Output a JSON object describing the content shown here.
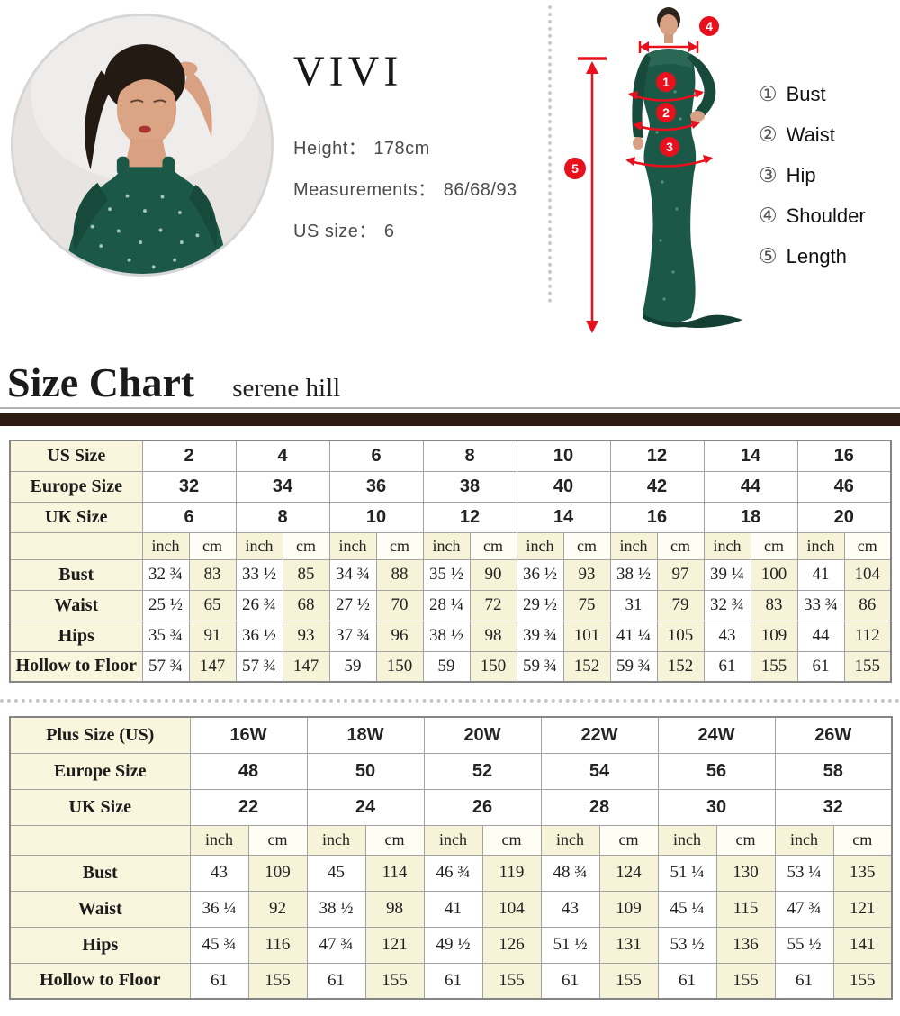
{
  "colors": {
    "accent_red": "#e8101d",
    "dress_green": "#1c5847",
    "table_cream": "#f9f6dd",
    "divider_brown": "#2b1a11"
  },
  "model_info": {
    "brand": "VIVI",
    "height_label": "Height：",
    "height_value": "178cm",
    "measurements_label": "Measurements：",
    "measurements_value": "86/68/93",
    "us_size_label": "US size：",
    "us_size_value": "6"
  },
  "figure": {
    "annotations": {
      "bust": "1",
      "waist": "2",
      "hip": "3",
      "shoulder": "4",
      "length": "5"
    }
  },
  "measure_legend": {
    "items": [
      {
        "num": "①",
        "label": "Bust"
      },
      {
        "num": "②",
        "label": "Waist"
      },
      {
        "num": "③",
        "label": "Hip"
      },
      {
        "num": "④",
        "label": "Shoulder"
      },
      {
        "num": "⑤",
        "label": "Length"
      }
    ]
  },
  "heading": {
    "title": "Size Chart",
    "subtitle": "serene hill"
  },
  "size_table": {
    "unit_inch": "inch",
    "unit_cm": "cm",
    "header_rows": [
      {
        "label": "US Size",
        "values": [
          "2",
          "4",
          "6",
          "8",
          "10",
          "12",
          "14",
          "16"
        ]
      },
      {
        "label": "Europe Size",
        "values": [
          "32",
          "34",
          "36",
          "38",
          "40",
          "42",
          "44",
          "46"
        ]
      },
      {
        "label": "UK Size",
        "values": [
          "6",
          "8",
          "10",
          "12",
          "14",
          "16",
          "18",
          "20"
        ]
      }
    ],
    "measure_rows": [
      {
        "label": "Bust",
        "inch": [
          "32 ¾",
          "33 ½",
          "34 ¾",
          "35 ½",
          "36 ½",
          "38 ½",
          "39 ¼",
          "41"
        ],
        "cm": [
          "83",
          "85",
          "88",
          "90",
          "93",
          "97",
          "100",
          "104"
        ]
      },
      {
        "label": "Waist",
        "inch": [
          "25 ½",
          "26 ¾",
          "27 ½",
          "28 ¼",
          "29 ½",
          "31",
          "32 ¾",
          "33 ¾"
        ],
        "cm": [
          "65",
          "68",
          "70",
          "72",
          "75",
          "79",
          "83",
          "86"
        ]
      },
      {
        "label": "Hips",
        "inch": [
          "35 ¾",
          "36 ½",
          "37 ¾",
          "38 ½",
          "39 ¾",
          "41 ¼",
          "43",
          "44"
        ],
        "cm": [
          "91",
          "93",
          "96",
          "98",
          "101",
          "105",
          "109",
          "112"
        ]
      },
      {
        "label": "Hollow to Floor",
        "inch": [
          "57 ¾",
          "57 ¾",
          "59",
          "59",
          "59 ¾",
          "59 ¾",
          "61",
          "61"
        ],
        "cm": [
          "147",
          "147",
          "150",
          "150",
          "152",
          "152",
          "155",
          "155"
        ]
      }
    ]
  },
  "plus_table": {
    "unit_inch": "inch",
    "unit_cm": "cm",
    "header_rows": [
      {
        "label": "Plus Size (US)",
        "values": [
          "16W",
          "18W",
          "20W",
          "22W",
          "24W",
          "26W"
        ]
      },
      {
        "label": "Europe Size",
        "values": [
          "48",
          "50",
          "52",
          "54",
          "56",
          "58"
        ]
      },
      {
        "label": "UK Size",
        "values": [
          "22",
          "24",
          "26",
          "28",
          "30",
          "32"
        ]
      }
    ],
    "measure_rows": [
      {
        "label": "Bust",
        "inch": [
          "43",
          "45",
          "46 ¾",
          "48 ¾",
          "51 ¼",
          "53 ¼"
        ],
        "cm": [
          "109",
          "114",
          "119",
          "124",
          "130",
          "135"
        ]
      },
      {
        "label": "Waist",
        "inch": [
          "36 ¼",
          "38 ½",
          "41",
          "43",
          "45 ¼",
          "47 ¾"
        ],
        "cm": [
          "92",
          "98",
          "104",
          "109",
          "115",
          "121"
        ]
      },
      {
        "label": "Hips",
        "inch": [
          "45 ¾",
          "47 ¾",
          "49 ½",
          "51 ½",
          "53 ½",
          "55 ½"
        ],
        "cm": [
          "116",
          "121",
          "126",
          "131",
          "136",
          "141"
        ]
      },
      {
        "label": "Hollow to Floor",
        "inch": [
          "61",
          "61",
          "61",
          "61",
          "61",
          "61"
        ],
        "cm": [
          "155",
          "155",
          "155",
          "155",
          "155",
          "155"
        ]
      }
    ]
  }
}
